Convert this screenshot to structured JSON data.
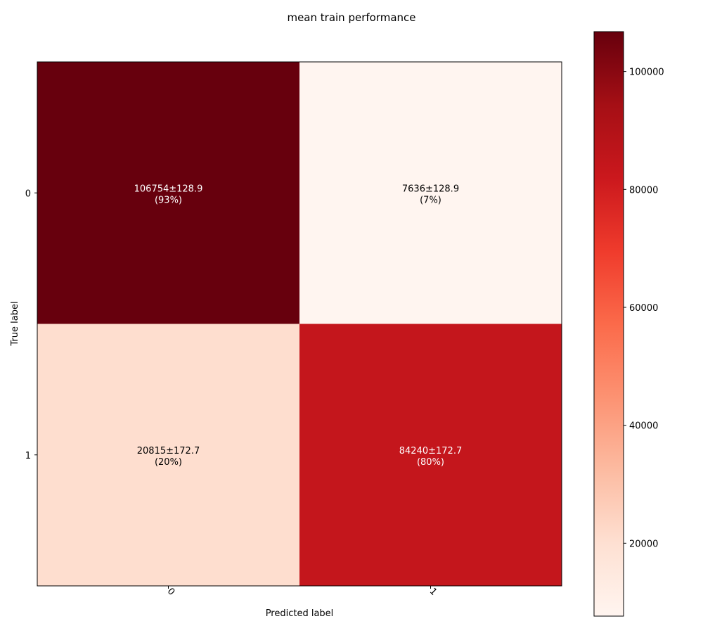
{
  "chart_data": {
    "type": "heatmap",
    "title": "mean train performance",
    "xlabel": "Predicted label",
    "ylabel": "True label",
    "x_categories": [
      "0",
      "1"
    ],
    "y_categories": [
      "0",
      "1"
    ],
    "values": [
      [
        106754,
        7636
      ],
      [
        20815,
        84240
      ]
    ],
    "cell_labels": [
      [
        {
          "main": "106754±128.9",
          "pct": "(93%)"
        },
        {
          "main": "7636±128.9",
          "pct": "(7%)"
        }
      ],
      [
        {
          "main": "20815±172.7",
          "pct": "(20%)"
        },
        {
          "main": "84240±172.7",
          "pct": "(80%)"
        }
      ]
    ],
    "colormap": "Reds",
    "colorbar": {
      "vmin": 7636,
      "vmax": 106754,
      "ticks": [
        20000,
        40000,
        60000,
        80000,
        100000
      ],
      "tick_labels": [
        "20000",
        "40000",
        "60000",
        "80000",
        "100000"
      ]
    },
    "x_tick_rotation_deg": 45
  }
}
